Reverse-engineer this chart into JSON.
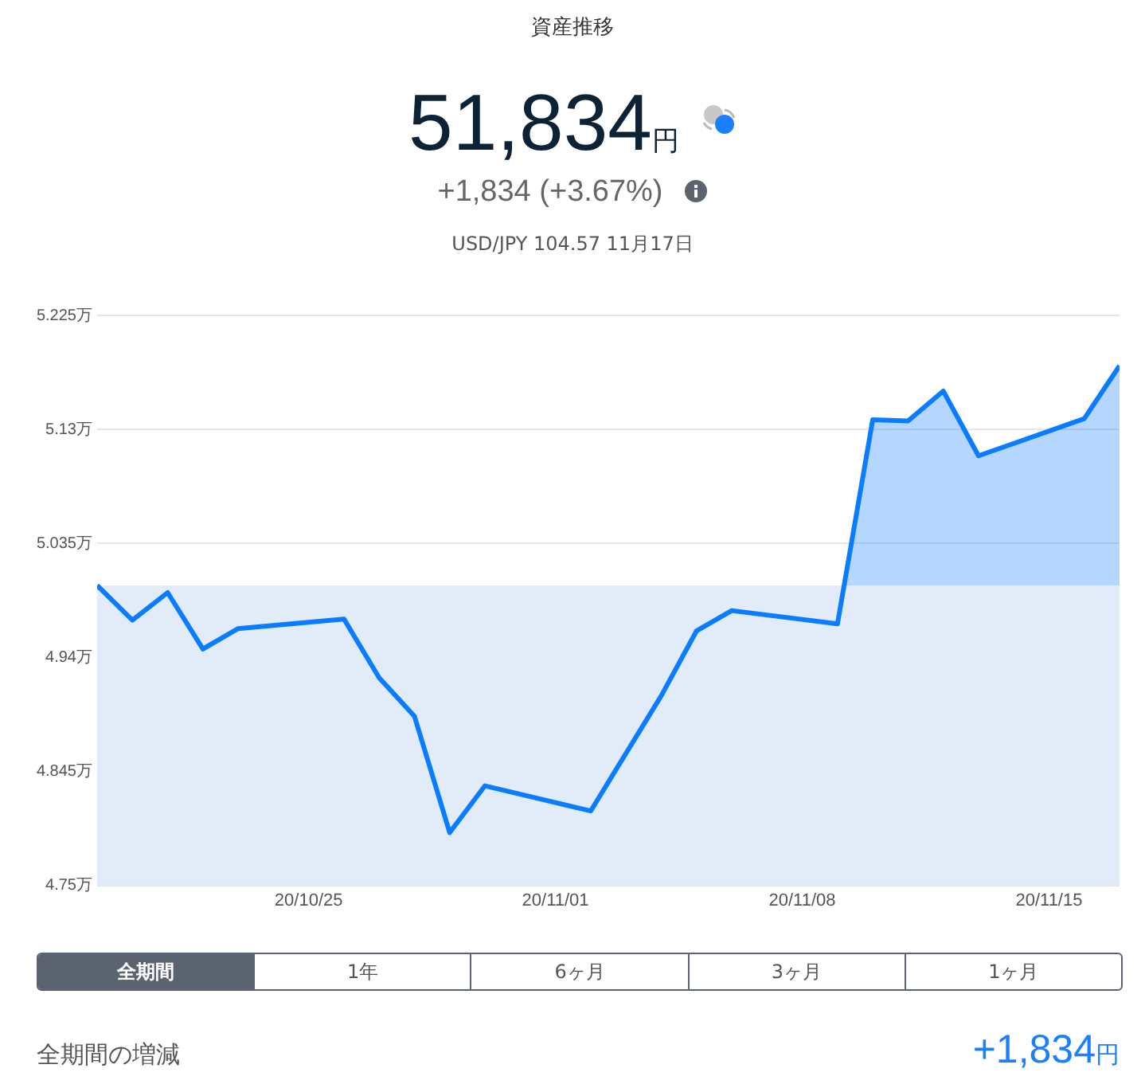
{
  "chart_data": {
    "type": "area",
    "title": "資産推移",
    "annotations": [
      "51,834円",
      "+1,834 (+3.67%)",
      "USD/JPY 104.57 11月17日",
      "全期間",
      "1年",
      "6ヶ月",
      "3ヶ月",
      "1ヶ月",
      "全期間の増減",
      "+1,834円"
    ],
    "x": [
      "--10-19",
      "--10-20",
      "--10-21",
      "--10-22",
      "--10-23",
      "--10-26",
      "--10-27",
      "--10-28",
      "--10-29",
      "--10-30",
      "--11-02",
      "--11-04",
      "--11-05",
      "--11-06",
      "--11-09",
      "--11-10",
      "--11-11",
      "--11-12",
      "--11-13",
      "--11-16",
      "--11-17"
    ],
    "series": [
      {
        "color": "#0a7cff",
        "values": [
          5.0,
          4.971,
          4.994,
          4.947,
          4.964,
          4.972,
          4.923,
          4.891,
          4.794,
          4.833,
          4.812,
          4.908,
          4.962,
          4.979,
          4.968,
          5.138,
          5.137,
          5.162,
          5.108,
          5.139,
          5.183
        ]
      }
    ],
    "xlim": [
      "--10-19",
      "--11-17"
    ],
    "xticks": [
      {
        "value": "--10-25",
        "label": "20/10/25"
      },
      {
        "value": "--11-01",
        "label": "20/11/01"
      },
      {
        "value": "--11-08",
        "label": "20/11/08"
      },
      {
        "value": "--11-15",
        "label": "20/11/15"
      }
    ],
    "ylim": [
      4.75,
      5.225
    ],
    "yticks": [
      {
        "value": 4.75,
        "label": "4.75万"
      },
      {
        "value": 4.845,
        "label": "4.845万"
      },
      {
        "value": 4.94,
        "label": "4.94万"
      },
      {
        "value": 5.035,
        "label": "5.035万"
      },
      {
        "value": 5.13,
        "label": "5.13万"
      },
      {
        "value": 5.225,
        "label": "5.225万"
      }
    ],
    "bands": [
      {
        "axis": "y",
        "from": 4.75,
        "to": 5.0,
        "color": "#e1ecf8"
      }
    ],
    "grid": "y",
    "legend": false,
    "marker": "none",
    "line_style": "solid"
  }
}
